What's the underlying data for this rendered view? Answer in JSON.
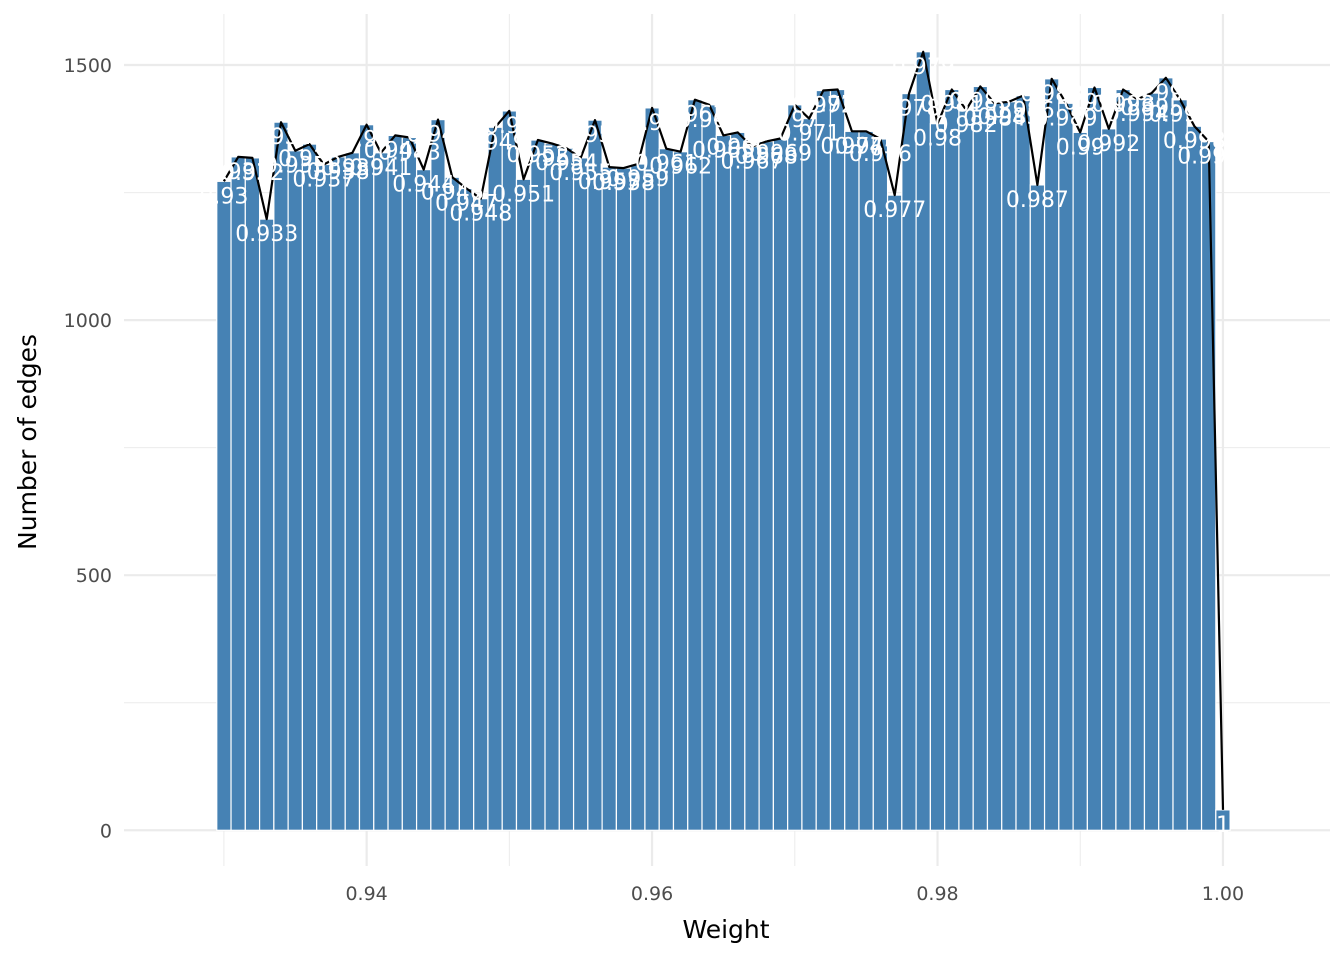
{
  "chart_data": {
    "type": "bar",
    "title": "",
    "xlabel": "Weight",
    "ylabel": "Number of edges",
    "xlim": [
      0.923,
      1.0075
    ],
    "ylim": [
      -70,
      1600
    ],
    "x_ticks": [
      "0.94",
      "0.96",
      "0.98",
      "1.00"
    ],
    "x_tick_values": [
      0.94,
      0.96,
      0.98,
      1.0
    ],
    "y_ticks": [
      "0",
      "500",
      "1000",
      "1500"
    ],
    "y_tick_values": [
      0,
      500,
      1000,
      1500
    ],
    "grid": true,
    "legend": "none",
    "colors": {
      "bar": "#4682B4",
      "line": "#000000",
      "label": "#FFFFFF",
      "grid": "#EBEBEB"
    },
    "bin_width": 0.001,
    "x": [
      0.93,
      0.931,
      0.932,
      0.933,
      0.934,
      0.935,
      0.936,
      0.937,
      0.938,
      0.939,
      0.94,
      0.941,
      0.942,
      0.943,
      0.944,
      0.945,
      0.946,
      0.947,
      0.948,
      0.949,
      0.95,
      0.951,
      0.952,
      0.953,
      0.954,
      0.955,
      0.956,
      0.957,
      0.958,
      0.959,
      0.96,
      0.961,
      0.962,
      0.963,
      0.964,
      0.965,
      0.966,
      0.967,
      0.968,
      0.969,
      0.97,
      0.971,
      0.972,
      0.973,
      0.974,
      0.975,
      0.976,
      0.977,
      0.978,
      0.979,
      0.98,
      0.981,
      0.982,
      0.983,
      0.984,
      0.985,
      0.986,
      0.987,
      0.988,
      0.989,
      0.99,
      0.991,
      0.992,
      0.993,
      0.994,
      0.995,
      0.996,
      0.997,
      0.998,
      0.999,
      1.0
    ],
    "values": [
      1272,
      1320,
      1318,
      1198,
      1388,
      1332,
      1345,
      1305,
      1320,
      1328,
      1383,
      1328,
      1362,
      1358,
      1295,
      1393,
      1280,
      1258,
      1238,
      1378,
      1410,
      1276,
      1353,
      1346,
      1337,
      1318,
      1392,
      1300,
      1298,
      1306,
      1416,
      1336,
      1330,
      1432,
      1422,
      1362,
      1368,
      1340,
      1350,
      1356,
      1422,
      1395,
      1450,
      1452,
      1370,
      1370,
      1355,
      1245,
      1444,
      1526,
      1385,
      1452,
      1412,
      1458,
      1425,
      1428,
      1440,
      1265,
      1473,
      1425,
      1368,
      1456,
      1375,
      1452,
      1433,
      1445,
      1475,
      1432,
      1380,
      1350,
      40
    ],
    "labels": [
      "0.93",
      "0.931",
      "0.932",
      "0.933",
      "0.934",
      "0.935",
      "0.936",
      "0.937",
      "0.938",
      "0.939",
      "0.94",
      "0.941",
      "0.942",
      "0.943",
      "0.944",
      "0.945",
      "0.946",
      "0.947",
      "0.948",
      "0.949",
      "0.95",
      "0.951",
      "0.952",
      "0.953",
      "0.954",
      "0.955",
      "0.956",
      "0.957",
      "0.958",
      "0.959",
      "0.96",
      "0.961",
      "0.962",
      "0.963",
      "0.964",
      "0.965",
      "0.966",
      "0.967",
      "0.968",
      "0.969",
      "0.97",
      "0.971",
      "0.972",
      "0.973",
      "0.974",
      "0.975",
      "0.976",
      "0.977",
      "0.978",
      "0.979",
      "0.98",
      "0.981",
      "0.982",
      "0.983",
      "0.984",
      "0.985",
      "0.986",
      "0.987",
      "0.988",
      "0.989",
      "0.99",
      "0.991",
      "0.992",
      "0.993",
      "0.994",
      "0.995",
      "0.996",
      "0.997",
      "0.998",
      "0.999",
      "1"
    ]
  }
}
